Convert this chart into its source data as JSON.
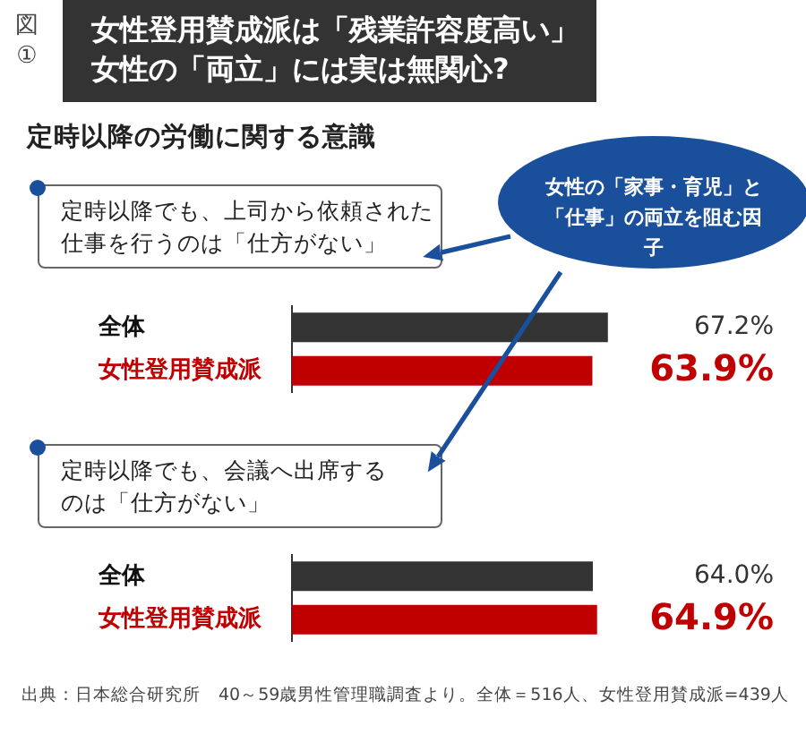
{
  "chart_data": [
    {
      "type": "bar",
      "orientation": "horizontal",
      "title": "女性登用賛成派は「残業許容度高い」女性の「両立」には実は無関心?",
      "subtitle": "定時以降の労働に関する意識",
      "annotations": [
        "図\n①",
        "定時以降でも、上司から依頼された仕事を行うのは「仕方がない」",
        "女性の「家事・育児」と「仕事」の両立を阻む因子"
      ],
      "categories": [
        "全体",
        "女性登用賛成派"
      ],
      "values": [
        67.2,
        63.9
      ],
      "colors": [
        "#333333",
        "#c00000"
      ],
      "value_labels": [
        "67.2%",
        "63.9%"
      ],
      "tick_labels": "y"
    },
    {
      "type": "bar",
      "orientation": "horizontal",
      "annotations": [
        "定時以降でも、会議へ出席するのは「仕方がない」",
        "出典：日本総合研究所　40～59歳男性管理職調査より。全体＝516人、女性登用賛成派=439人"
      ],
      "categories": [
        "全体",
        "女性登用賛成派"
      ],
      "values": [
        64.0,
        64.9
      ],
      "colors": [
        "#333333",
        "#c00000"
      ],
      "value_labels": [
        "64.0%",
        "64.9%"
      ],
      "tick_labels": "y"
    }
  ]
}
